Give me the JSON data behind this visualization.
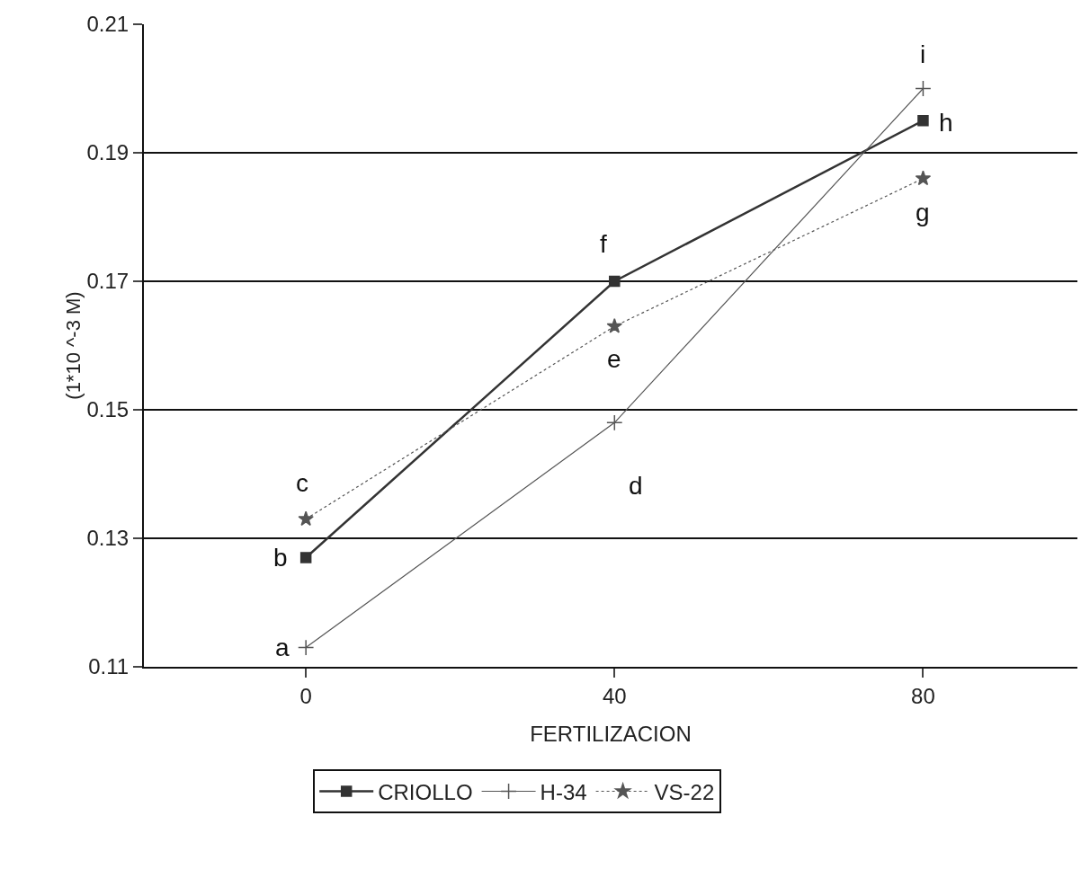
{
  "chart_data": {
    "type": "line",
    "xlabel": "FERTILIZACION",
    "ylabel": "(1*10 ^-3 M)",
    "x": [
      0,
      40,
      80
    ],
    "series": [
      {
        "name": "CRIOLLO",
        "color": "#333333",
        "values": [
          0.127,
          0.17,
          0.195
        ],
        "marker": "square",
        "line_style": "solid"
      },
      {
        "name": "H-34",
        "color": "#555555",
        "values": [
          0.113,
          0.148,
          0.2
        ],
        "marker": "cross",
        "line_style": "solid"
      },
      {
        "name": "VS-22",
        "color": "#555555",
        "values": [
          0.133,
          0.163,
          0.186
        ],
        "marker": "star",
        "line_style": "dotted"
      }
    ],
    "xlim": [
      -21,
      100
    ],
    "xticks": [
      0,
      40,
      80
    ],
    "ylim": [
      0.11,
      0.21
    ],
    "yticks": [
      0.11,
      0.13,
      0.15,
      0.17,
      0.19,
      0.21
    ],
    "grid": "y",
    "legend": "bottom",
    "annotations": [
      {
        "text": "a",
        "x": 0,
        "y": 0.113
      },
      {
        "text": "b",
        "x": 0,
        "y": 0.127
      },
      {
        "text": "c",
        "x": 0,
        "y": 0.133
      },
      {
        "text": "d",
        "x": 40,
        "y": 0.148
      },
      {
        "text": "e",
        "x": 40,
        "y": 0.163
      },
      {
        "text": "f",
        "x": 40,
        "y": 0.17
      },
      {
        "text": "g",
        "x": 80,
        "y": 0.186
      },
      {
        "text": "h",
        "x": 80,
        "y": 0.195
      },
      {
        "text": "i",
        "x": 80,
        "y": 0.2
      }
    ]
  }
}
